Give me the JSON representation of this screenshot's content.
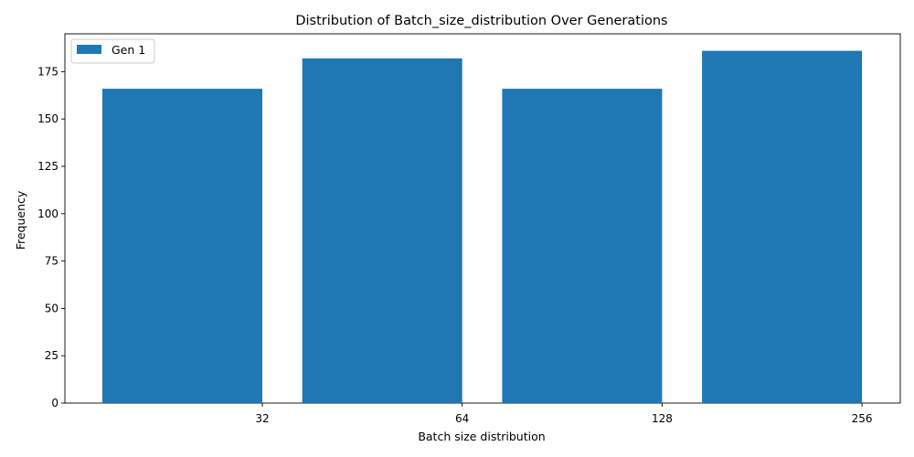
{
  "chart_data": {
    "type": "bar",
    "title": "Distribution of Batch_size_distribution Over Generations",
    "xlabel": "Batch size distribution",
    "ylabel": "Frequency",
    "categories": [
      "32",
      "64",
      "128",
      "256"
    ],
    "series": [
      {
        "name": "Gen 1",
        "values": [
          166,
          182,
          166,
          186
        ],
        "color": "#1f77b4"
      }
    ],
    "ylim": [
      0,
      195
    ],
    "yticks": [
      0,
      25,
      50,
      75,
      100,
      125,
      150,
      175
    ],
    "grid": false,
    "legend_position": "top-left"
  }
}
